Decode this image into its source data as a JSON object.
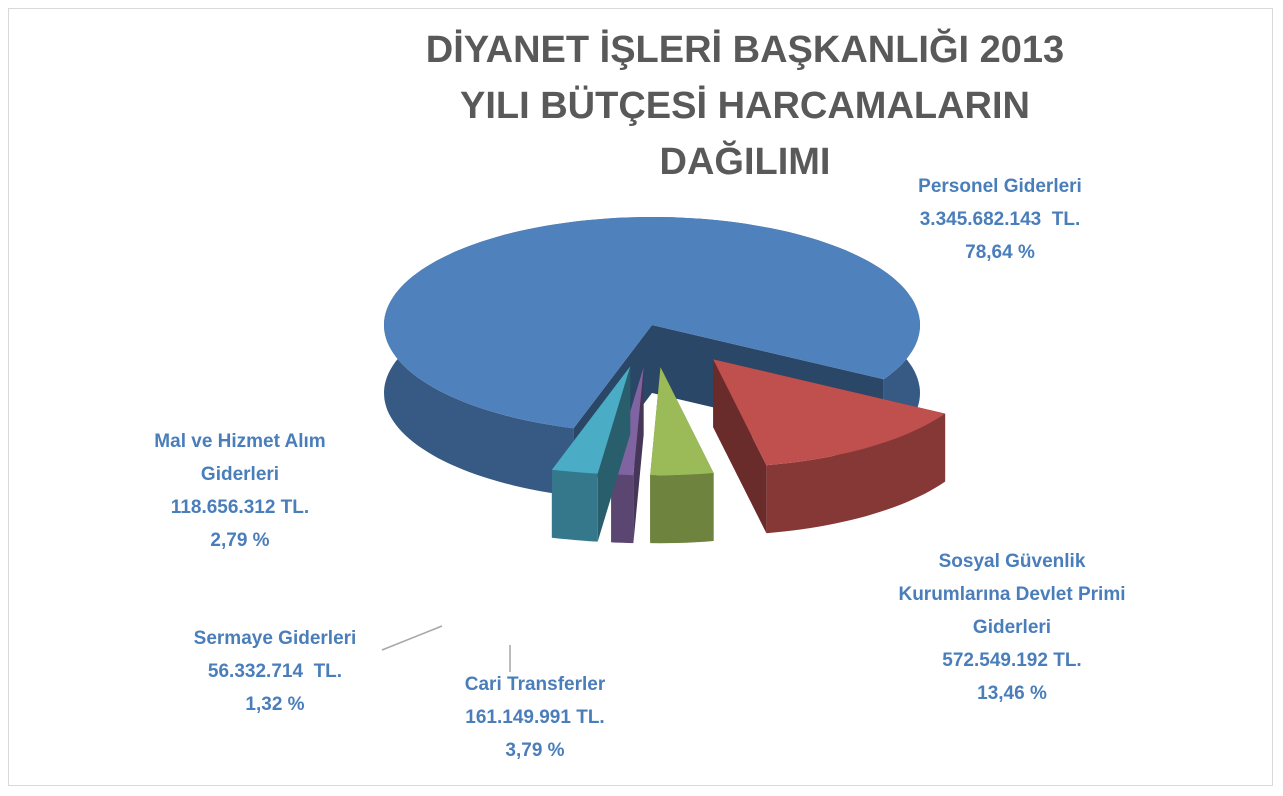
{
  "chart_data": {
    "type": "pie3d",
    "title": "DİYANET İŞLERİ BAŞKANLIĞI 2013 YILI BÜTÇESİ HARCAMALARIN DAĞILIMI",
    "categories": [
      "Personel Giderleri",
      "Sosyal Güvenlik Kurumlarına Devlet Primi Giderleri",
      "Cari Transferler",
      "Sermaye Giderleri",
      "Mal ve Hizmet Alım Giderleri"
    ],
    "values": [
      3345682143,
      572549192,
      161149991,
      56332714,
      118656312
    ],
    "value_labels": [
      "3.345.682.143  TL.",
      "572.549.192 TL.",
      "161.149.991 TL.",
      "56.332.714  TL.",
      "118.656.312 TL."
    ],
    "percents": [
      78.64,
      13.46,
      3.79,
      1.32,
      2.79
    ],
    "percent_labels": [
      "78,64 %",
      "13,46 %",
      "3,79 %",
      "1,32 %",
      "2,79 %"
    ],
    "colors": [
      "#4f81bd",
      "#c0504d",
      "#9bbb59",
      "#8064a2",
      "#4bacc6"
    ]
  }
}
